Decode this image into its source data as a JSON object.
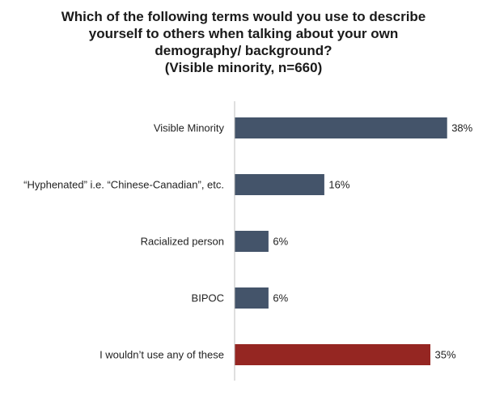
{
  "chart_data": {
    "type": "bar",
    "orientation": "horizontal",
    "title_lines": [
      "Which of the following terms would you use to describe",
      "yourself to others when talking about your own",
      "demography/ background?",
      "(Visible minority, n=660)"
    ],
    "categories": [
      "Visible Minority",
      "“Hyphenated” i.e. “Chinese-Canadian”, etc.",
      "Racialized person",
      "BIPOC",
      "I wouldn’t use any of these"
    ],
    "values": [
      38,
      16,
      6,
      6,
      35
    ],
    "value_labels": [
      "38%",
      "16%",
      "6%",
      "6%",
      "35%"
    ],
    "bar_colors": [
      "#44546a",
      "#44546a",
      "#44546a",
      "#44546a",
      "#952622"
    ],
    "xlim": [
      0,
      40
    ],
    "grid": false,
    "legend": "none"
  }
}
